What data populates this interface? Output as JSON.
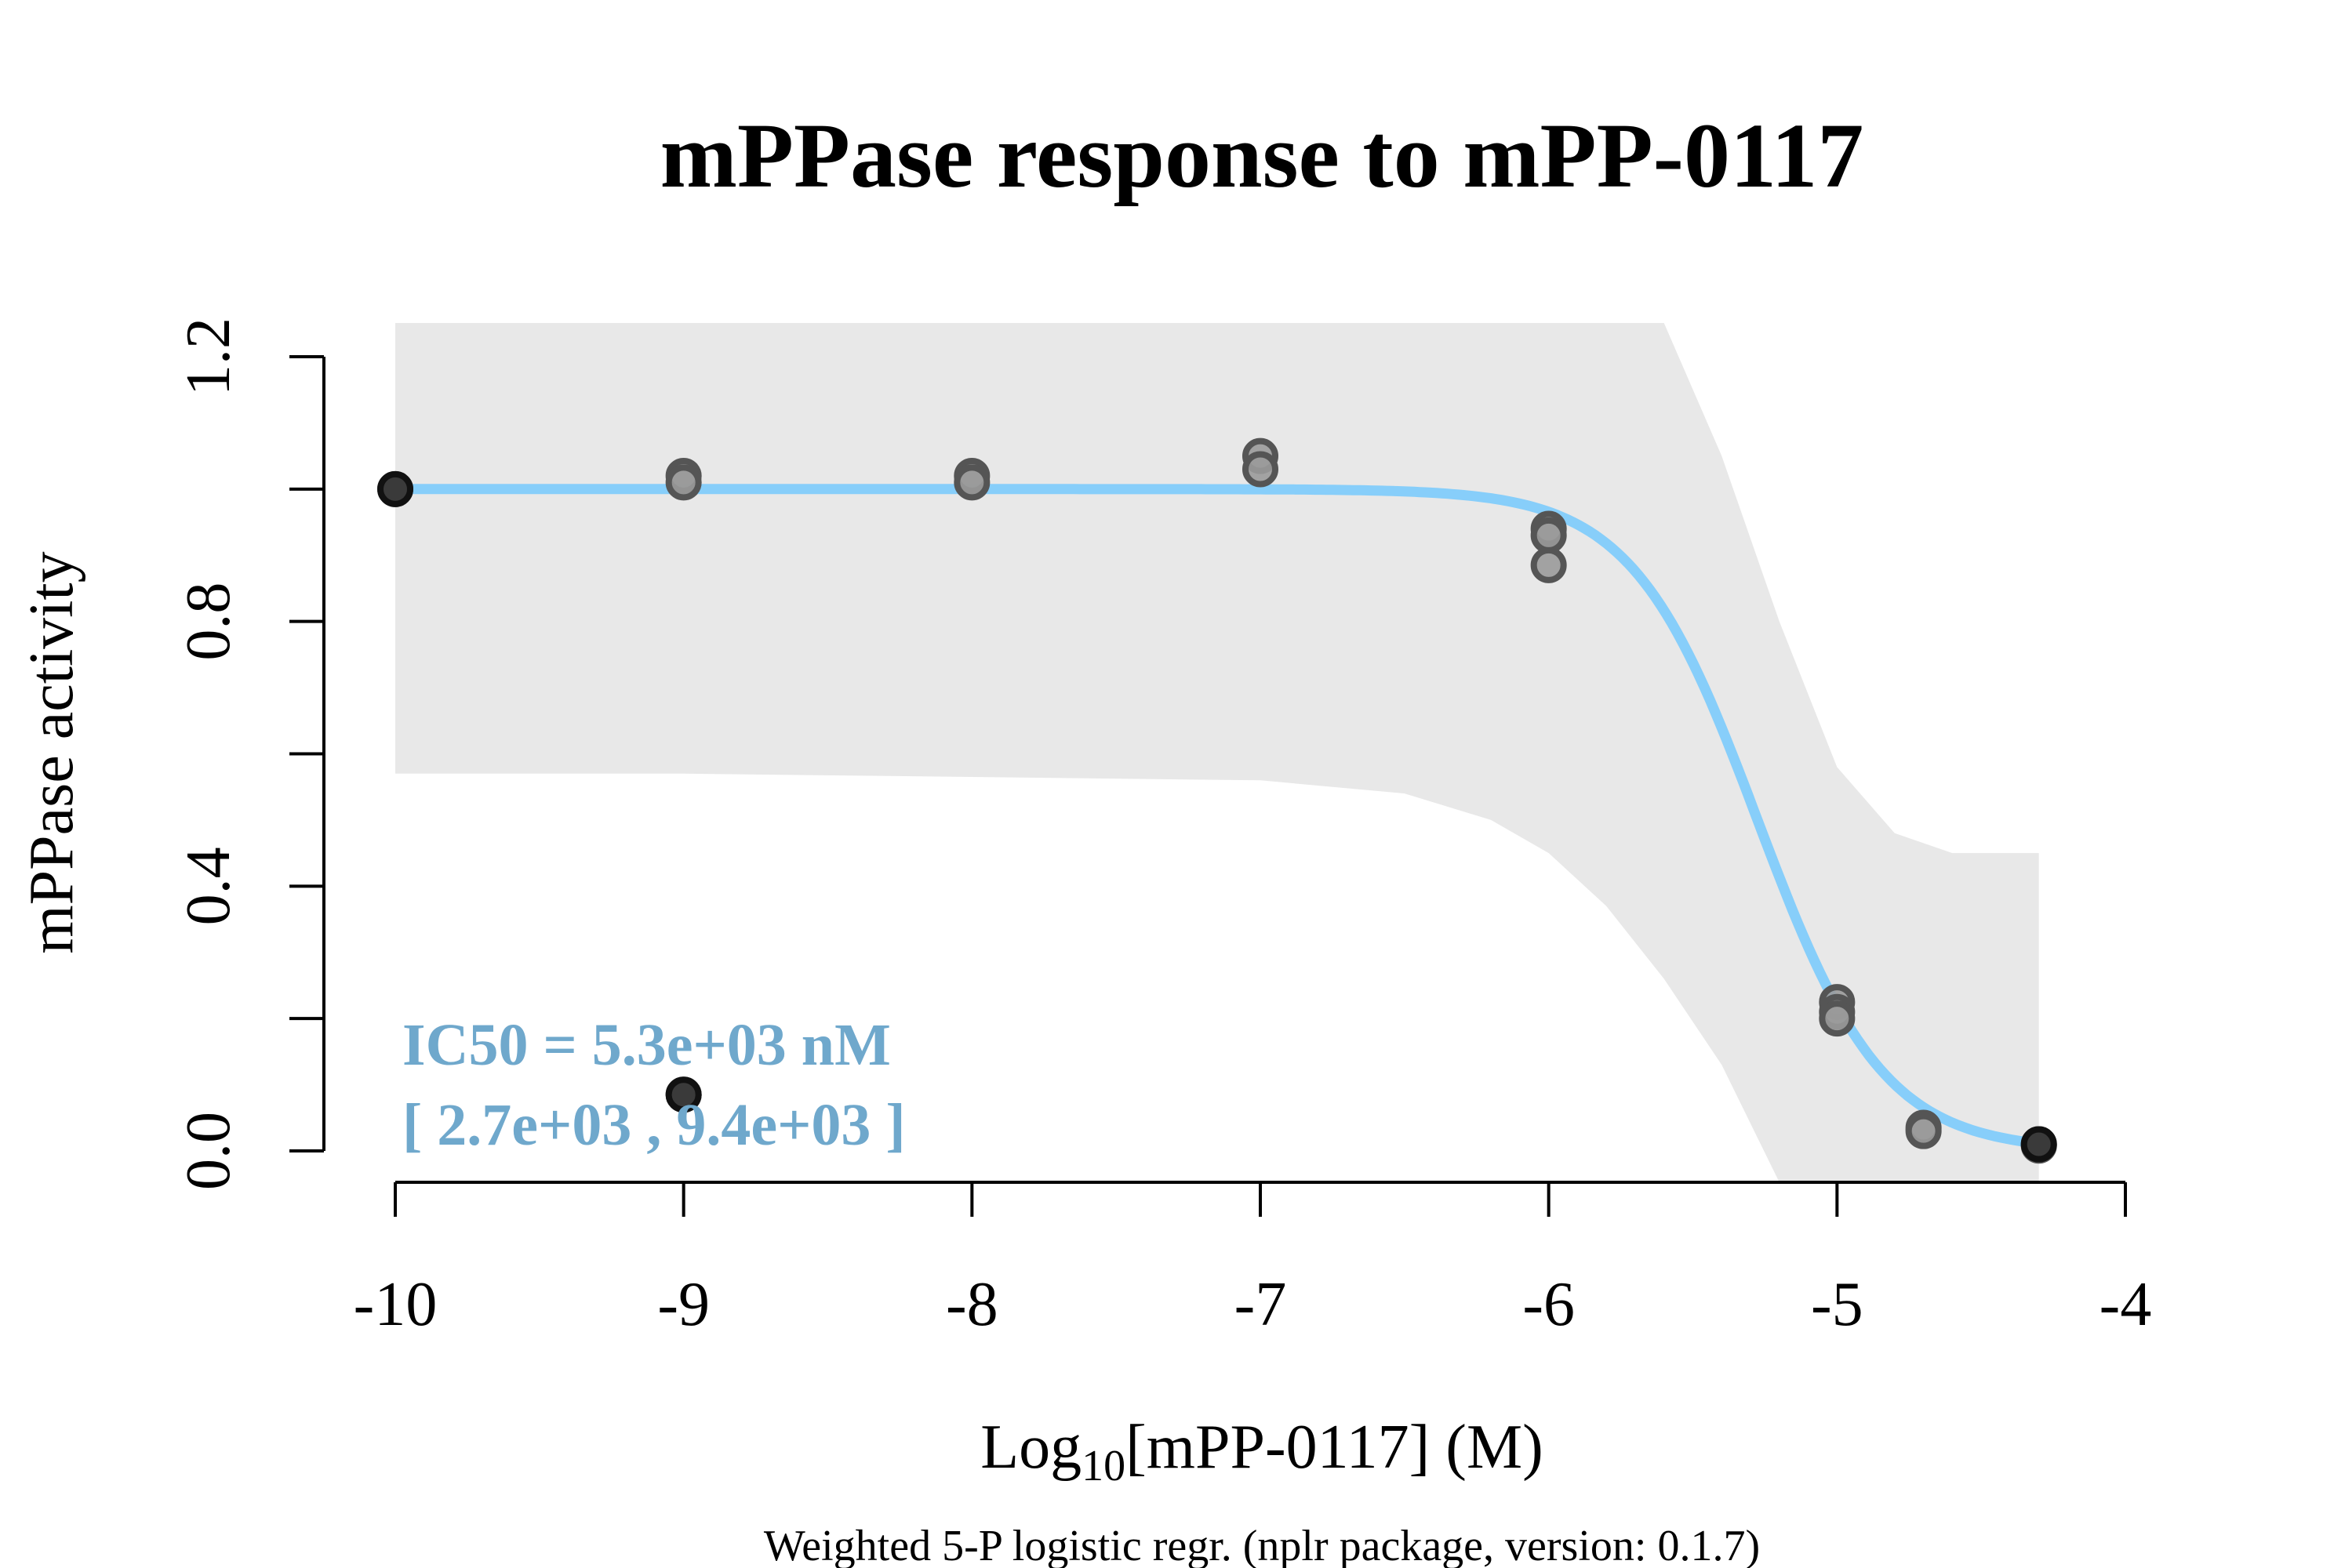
{
  "chart_data": {
    "type": "scatter",
    "title": "mPPase response to mPP-0117",
    "xlabel_prefix": "Log",
    "xlabel_sub": "10",
    "xlabel_suffix": "[mPP-0117] (M)",
    "ylabel": "mPPase activity",
    "footer": "Weighted 5-P logistic regr. (nplr package, version: 0.1.7)",
    "xlim": [
      -10,
      -4
    ],
    "ylim": [
      0,
      1.2
    ],
    "x_ticks": [
      -10,
      -9,
      -8,
      -7,
      -6,
      -5,
      -4
    ],
    "x_tick_labels": [
      "-10",
      "-9",
      "-8",
      "-7",
      "-6",
      "-5",
      "-4"
    ],
    "y_ticks": [
      0,
      0.2,
      0.4,
      0.6,
      0.8,
      1.0,
      1.2
    ],
    "y_tick_labels": [
      "0.0",
      "",
      "0.4",
      "",
      "0.8",
      "",
      "1.2"
    ],
    "grid": false,
    "annotation": {
      "line1": "IC50 = 5.3e+03 nM",
      "line2": "[ 2.7e+03 , 9.4e+03 ]",
      "color": "#6FA8CC"
    },
    "curve": {
      "model": "5-parameter logistic",
      "bottom": 0.0,
      "top": 1.0,
      "log_ic50": -5.2757,
      "hill_slope": -2.0,
      "color": "#87CEFA"
    },
    "confidence_band": {
      "color": "#E8E8E8",
      "x": [
        -10,
        -9,
        -8,
        -7,
        -6.5,
        -6.2,
        -6.0,
        -5.8,
        -5.6,
        -5.4,
        -5.2,
        -5.0,
        -4.8,
        -4.6,
        -4.3
      ],
      "lower": [
        0.57,
        0.57,
        0.565,
        0.56,
        0.54,
        0.5,
        0.45,
        0.37,
        0.26,
        0.13,
        -0.1,
        -0.2,
        -0.2,
        -0.2,
        -0.2
      ],
      "upper": [
        1.26,
        1.26,
        1.26,
        1.26,
        1.26,
        1.26,
        1.26,
        1.26,
        1.26,
        1.05,
        0.8,
        0.58,
        0.48,
        0.45,
        0.45
      ]
    },
    "series": [
      {
        "values": [
          {
            "x": -10,
            "y": 1.0
          },
          {
            "x": -9,
            "y": 1.02
          },
          {
            "x": -9,
            "y": 1.01
          },
          {
            "x": -9,
            "y": 0.085
          },
          {
            "x": -8,
            "y": 1.02
          },
          {
            "x": -8,
            "y": 1.01
          },
          {
            "x": -7,
            "y": 1.05
          },
          {
            "x": -7,
            "y": 1.03
          },
          {
            "x": -6,
            "y": 0.94
          },
          {
            "x": -6,
            "y": 0.93
          },
          {
            "x": -6,
            "y": 0.885
          },
          {
            "x": -5,
            "y": 0.225
          },
          {
            "x": -5,
            "y": 0.21
          },
          {
            "x": -5,
            "y": 0.2
          },
          {
            "x": -4.7,
            "y": 0.035
          },
          {
            "x": -4.7,
            "y": 0.03
          },
          {
            "x": -4.3,
            "y": 0.01
          },
          {
            "x": -4.3,
            "y": 0.008
          }
        ]
      }
    ],
    "outliers": [
      {
        "x": -10,
        "y": 1.0
      },
      {
        "x": -9,
        "y": 0.085
      },
      {
        "x": -4.3,
        "y": 0.01
      }
    ]
  }
}
